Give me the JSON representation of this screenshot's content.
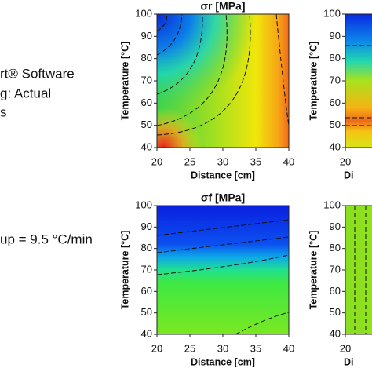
{
  "texts": {
    "left": [
      "rt® Software",
      "g: Actual",
      "s"
    ],
    "rate": "up = 9.5 °C/min"
  },
  "chart_data": [
    {
      "type": "contour",
      "title": "σr [MPa]",
      "x_label": "Distance [cm]",
      "y_label": "Temperature [°C]",
      "xlim": [
        20,
        40
      ],
      "ylim": [
        40,
        100
      ],
      "xticks": [
        20,
        25,
        30,
        35,
        40
      ],
      "yticks": [
        40,
        50,
        60,
        70,
        80,
        90,
        100
      ]
    },
    {
      "type": "contour",
      "x_label": "Di",
      "y_label": "Temperature [°C]",
      "xlim": [
        20,
        40
      ],
      "ylim": [
        40,
        100
      ],
      "xticks": [
        20
      ],
      "yticks": [
        40,
        50,
        60,
        70,
        80,
        90,
        100
      ]
    },
    {
      "type": "contour",
      "title": "σf [MPa]",
      "x_label": "Distance [cm]",
      "y_label": "Temperature [°C]",
      "xlim": [
        20,
        40
      ],
      "ylim": [
        40,
        100
      ],
      "xticks": [
        20,
        25,
        30,
        35,
        40
      ],
      "yticks": [
        40,
        50,
        60,
        70,
        80,
        90,
        100
      ]
    },
    {
      "type": "contour",
      "x_label": "Di",
      "y_label": "Temperature [°C]",
      "xlim": [
        20,
        40
      ],
      "ylim": [
        40,
        100
      ],
      "xticks": [
        20
      ],
      "yticks": [
        40,
        50,
        60,
        70,
        80,
        90,
        100
      ]
    }
  ]
}
